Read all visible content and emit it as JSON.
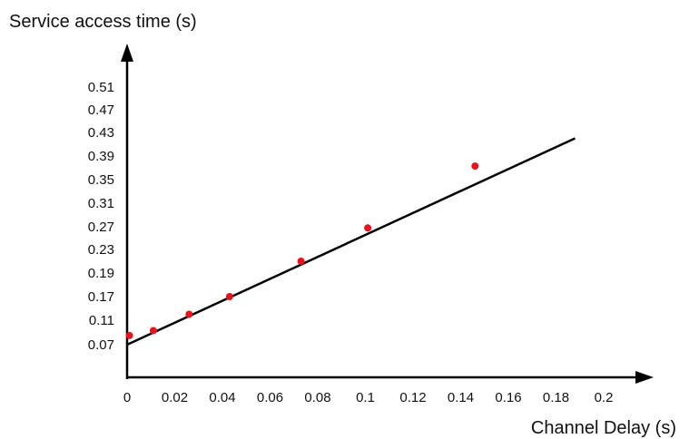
{
  "chart_data": {
    "type": "scatter",
    "title": "",
    "xlabel": "Channel Delay (s)",
    "ylabel": "Service access time (s)",
    "x_ticks": [
      "0",
      "0.02",
      "0.04",
      "0.06",
      "0.08",
      "0.1",
      "0.12",
      "0.14",
      "0.16",
      "0.18",
      "0.2"
    ],
    "y_ticks": [
      "0.07",
      "0.11",
      "0.17",
      "0.19",
      "0.23",
      "0.27",
      "0.31",
      "0.35",
      "0.39",
      "0.43",
      "0.47",
      "0.51"
    ],
    "xlim": [
      0,
      0.2
    ],
    "y_axis_scale": "categorical ticks, evenly spaced",
    "series": [
      {
        "type": "scatter",
        "color": "#e8141c",
        "points": [
          {
            "x": 0.001,
            "y": 0.085
          },
          {
            "x": 0.011,
            "y": 0.093
          },
          {
            "x": 0.026,
            "y": 0.125
          },
          {
            "x": 0.043,
            "y": 0.17
          },
          {
            "x": 0.073,
            "y": 0.21
          },
          {
            "x": 0.101,
            "y": 0.268
          },
          {
            "x": 0.146,
            "y": 0.373
          }
        ]
      },
      {
        "type": "line",
        "color": "#000000",
        "points": [
          {
            "x": 0.0,
            "y": 0.07
          },
          {
            "x": 0.188,
            "y": 0.42
          }
        ]
      }
    ],
    "grid": false,
    "legend": "none"
  }
}
